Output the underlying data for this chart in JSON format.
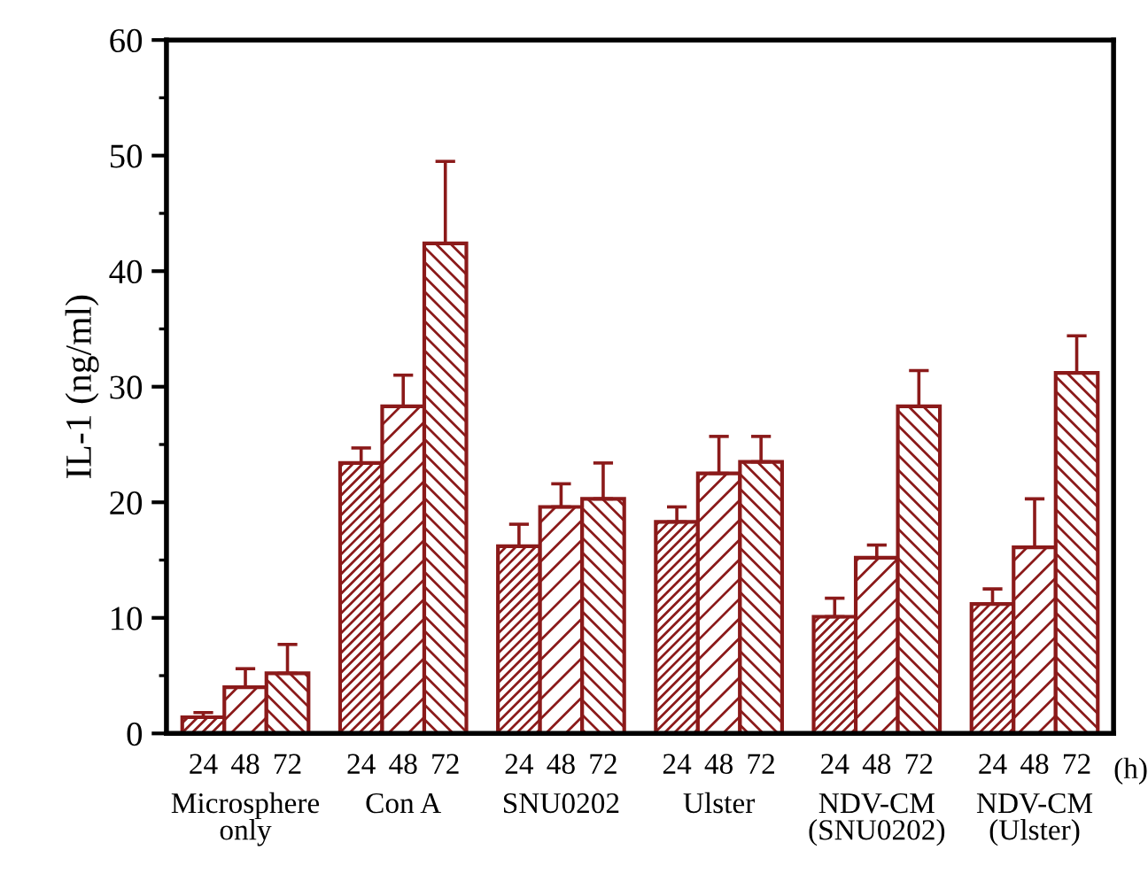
{
  "chart_data": {
    "type": "bar",
    "ylabel": "IL-1 (ng/ml)",
    "categories": [
      "Microsphere\nonly",
      "Con A",
      "SNU0202",
      "Ulster",
      "NDV-CM\n(SNU0202)",
      "NDV-CM\n(Ulster)"
    ],
    "series": [
      {
        "name": "24",
        "color": "#8b1a1a",
        "values": [
          1.4,
          23.4,
          16.2,
          18.3,
          10.1,
          11.2
        ],
        "errors": [
          0.4,
          1.3,
          1.9,
          1.3,
          1.6,
          1.3
        ]
      },
      {
        "name": "48",
        "color": "#8b1a1a",
        "values": [
          4.0,
          28.3,
          19.6,
          22.5,
          15.2,
          16.1
        ],
        "errors": [
          1.6,
          2.7,
          2.0,
          3.2,
          1.1,
          4.2
        ]
      },
      {
        "name": "72",
        "color": "#8b1a1a",
        "values": [
          5.2,
          42.4,
          20.3,
          23.5,
          28.3,
          31.2
        ],
        "errors": [
          2.5,
          7.1,
          3.1,
          2.2,
          3.1,
          3.2
        ]
      }
    ],
    "ylim": [
      0,
      60
    ],
    "yticks": [
      0,
      10,
      20,
      30,
      40,
      50,
      60
    ],
    "grid": false,
    "legend": false,
    "annotations": [
      "(h)"
    ]
  }
}
